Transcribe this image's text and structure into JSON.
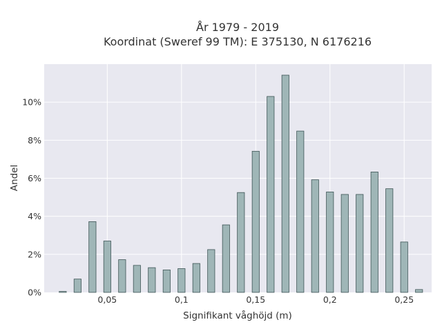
{
  "chart_data": {
    "type": "bar",
    "title_lines": [
      "År 1979 - 2019",
      "Koordinat (Sweref 99 TM): E 375130, N 6176216"
    ],
    "xlabel": "Signifikant våghöjd (m)",
    "ylabel": "Andel",
    "xlim": [
      0.0075,
      0.2685
    ],
    "ylim": [
      0,
      12
    ],
    "x_ticks": [
      {
        "value": 0.05,
        "label": "0,05"
      },
      {
        "value": 0.1,
        "label": "0,1"
      },
      {
        "value": 0.15,
        "label": "0,15"
      },
      {
        "value": 0.2,
        "label": "0,2"
      },
      {
        "value": 0.25,
        "label": "0,25"
      }
    ],
    "y_ticks": [
      {
        "value": 0,
        "label": "0%"
      },
      {
        "value": 2,
        "label": "2%"
      },
      {
        "value": 4,
        "label": "4%"
      },
      {
        "value": 6,
        "label": "6%"
      },
      {
        "value": 8,
        "label": "8%"
      },
      {
        "value": 10,
        "label": "10%"
      }
    ],
    "bar_width": 0.0048,
    "bars": [
      {
        "x": 0.02,
        "value": 0.05
      },
      {
        "x": 0.03,
        "value": 0.7
      },
      {
        "x": 0.04,
        "value": 3.72
      },
      {
        "x": 0.05,
        "value": 2.7
      },
      {
        "x": 0.06,
        "value": 1.72
      },
      {
        "x": 0.07,
        "value": 1.42
      },
      {
        "x": 0.08,
        "value": 1.3
      },
      {
        "x": 0.09,
        "value": 1.18
      },
      {
        "x": 0.1,
        "value": 1.25
      },
      {
        "x": 0.11,
        "value": 1.52
      },
      {
        "x": 0.12,
        "value": 2.25
      },
      {
        "x": 0.13,
        "value": 3.55
      },
      {
        "x": 0.14,
        "value": 5.25
      },
      {
        "x": 0.15,
        "value": 7.42
      },
      {
        "x": 0.16,
        "value": 10.3
      },
      {
        "x": 0.17,
        "value": 11.42
      },
      {
        "x": 0.18,
        "value": 8.48
      },
      {
        "x": 0.19,
        "value": 5.92
      },
      {
        "x": 0.2,
        "value": 5.28
      },
      {
        "x": 0.21,
        "value": 5.15
      },
      {
        "x": 0.22,
        "value": 5.15
      },
      {
        "x": 0.23,
        "value": 6.33
      },
      {
        "x": 0.24,
        "value": 5.45
      },
      {
        "x": 0.25,
        "value": 2.65
      },
      {
        "x": 0.26,
        "value": 0.15
      }
    ],
    "grid": true,
    "colors": {
      "plot_background": "#e8e8f0",
      "grid": "#ffffff",
      "bar_fill": "#9fb6b7",
      "bar_edge": "#3d5455"
    }
  }
}
